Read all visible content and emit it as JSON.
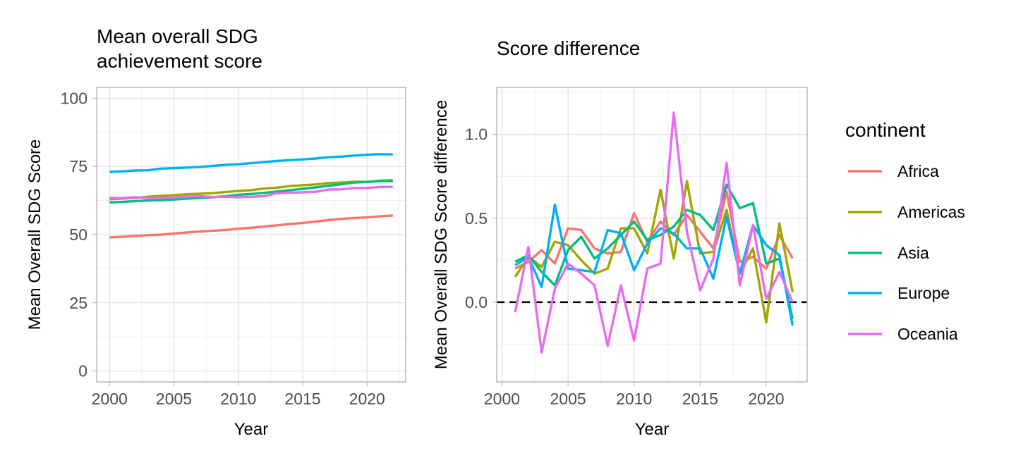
{
  "chart_data": [
    {
      "type": "line",
      "title": "Mean overall SDG achievement score",
      "title_lines": [
        "Mean overall SDG",
        "achievement score"
      ],
      "xlabel": "Year",
      "ylabel": "Mean Overall SDG Score",
      "xlim": [
        1999,
        2023
      ],
      "ylim": [
        -4,
        104
      ],
      "xticks": [
        2000,
        2005,
        2010,
        2015,
        2020
      ],
      "yticks": [
        0,
        25,
        50,
        75,
        100
      ],
      "x": [
        2000,
        2001,
        2002,
        2003,
        2004,
        2005,
        2006,
        2007,
        2008,
        2009,
        2010,
        2011,
        2012,
        2013,
        2014,
        2015,
        2016,
        2017,
        2018,
        2019,
        2020,
        2021,
        2022
      ],
      "grid": true,
      "series": [
        {
          "name": "Africa",
          "color": "#F8766D",
          "values": [
            49.0,
            49.2,
            49.5,
            49.8,
            50.0,
            50.4,
            50.8,
            51.1,
            51.4,
            51.7,
            52.2,
            52.5,
            53.0,
            53.4,
            53.9,
            54.3,
            54.8,
            55.3,
            55.8,
            56.1,
            56.3,
            56.7,
            57.0
          ]
        },
        {
          "name": "Americas",
          "color": "#A3A500",
          "values": [
            63.0,
            63.2,
            63.5,
            63.9,
            64.2,
            64.5,
            64.8,
            65.0,
            65.2,
            65.6,
            66.0,
            66.3,
            66.9,
            67.2,
            67.8,
            68.1,
            68.4,
            68.9,
            69.1,
            69.4,
            69.3,
            69.8,
            69.9
          ]
        },
        {
          "name": "Asia",
          "color": "#00BF7D",
          "values": [
            61.8,
            62.0,
            62.3,
            62.5,
            62.6,
            62.9,
            63.2,
            63.4,
            63.7,
            64.1,
            64.6,
            64.9,
            65.3,
            65.8,
            66.3,
            66.8,
            67.3,
            67.9,
            68.5,
            69.1,
            69.3,
            69.6,
            69.6
          ]
        },
        {
          "name": "Europe",
          "color": "#00B0F6",
          "values": [
            73.0,
            73.2,
            73.5,
            73.6,
            74.2,
            74.4,
            74.6,
            74.8,
            75.2,
            75.6,
            75.8,
            76.2,
            76.6,
            77.0,
            77.3,
            77.6,
            77.9,
            78.4,
            78.6,
            79.0,
            79.3,
            79.5,
            79.4
          ]
        },
        {
          "name": "Oceania",
          "color": "#E76BF3",
          "values": [
            63.5,
            63.4,
            63.7,
            63.4,
            63.5,
            63.7,
            63.9,
            64.1,
            63.8,
            63.9,
            63.7,
            63.9,
            64.1,
            65.2,
            65.4,
            65.5,
            65.7,
            66.5,
            66.6,
            67.1,
            67.1,
            67.5,
            67.5
          ]
        }
      ]
    },
    {
      "type": "line",
      "title": "Score difference",
      "xlabel": "Year",
      "ylabel": "Mean Overall SDG Score difference",
      "xlim": [
        1999.6,
        2023.1
      ],
      "ylim": [
        -0.475,
        1.28
      ],
      "xticks": [
        2000,
        2005,
        2010,
        2015,
        2020
      ],
      "yticks": [
        0.0,
        0.5,
        1.0
      ],
      "ytick_labels": [
        "0.0",
        "0.5",
        "1.0"
      ],
      "x": [
        2001,
        2002,
        2003,
        2004,
        2005,
        2006,
        2007,
        2008,
        2009,
        2010,
        2011,
        2012,
        2013,
        2014,
        2015,
        2016,
        2017,
        2018,
        2019,
        2020,
        2021,
        2022
      ],
      "reference_line": {
        "y": 0,
        "style": "dashed",
        "color": "#000000"
      },
      "grid": true,
      "series": [
        {
          "name": "Africa",
          "color": "#F8766D",
          "values": [
            0.2,
            0.24,
            0.31,
            0.23,
            0.44,
            0.43,
            0.32,
            0.29,
            0.3,
            0.53,
            0.36,
            0.48,
            0.4,
            0.52,
            0.42,
            0.32,
            0.66,
            0.24,
            0.27,
            0.2,
            0.4,
            0.26
          ]
        },
        {
          "name": "Americas",
          "color": "#A3A500",
          "values": [
            0.15,
            0.27,
            0.21,
            0.36,
            0.34,
            0.25,
            0.17,
            0.2,
            0.44,
            0.44,
            0.29,
            0.67,
            0.26,
            0.72,
            0.29,
            0.3,
            0.55,
            0.17,
            0.32,
            -0.12,
            0.47,
            0.06
          ]
        },
        {
          "name": "Asia",
          "color": "#00BF7D",
          "values": [
            0.24,
            0.28,
            0.18,
            0.1,
            0.31,
            0.39,
            0.26,
            0.32,
            0.4,
            0.48,
            0.37,
            0.4,
            0.45,
            0.55,
            0.52,
            0.43,
            0.7,
            0.56,
            0.59,
            0.23,
            0.26,
            -0.1
          ]
        },
        {
          "name": "Europe",
          "color": "#00B0F6",
          "values": [
            0.22,
            0.27,
            0.09,
            0.58,
            0.2,
            0.19,
            0.18,
            0.43,
            0.41,
            0.19,
            0.35,
            0.44,
            0.41,
            0.32,
            0.32,
            0.14,
            0.51,
            0.17,
            0.46,
            0.34,
            0.28,
            -0.14
          ]
        },
        {
          "name": "Oceania",
          "color": "#E76BF3",
          "values": [
            -0.06,
            0.33,
            -0.3,
            0.08,
            0.23,
            0.17,
            0.1,
            -0.26,
            0.1,
            -0.23,
            0.2,
            0.23,
            1.13,
            0.42,
            0.07,
            0.26,
            0.83,
            0.1,
            0.46,
            0.02,
            0.18,
            0.0
          ]
        }
      ]
    }
  ],
  "legend": {
    "title": "continent",
    "placement": "right",
    "items": [
      {
        "label": "Africa",
        "color": "#F8766D"
      },
      {
        "label": "Americas",
        "color": "#A3A500"
      },
      {
        "label": "Asia",
        "color": "#00BF7D"
      },
      {
        "label": "Europe",
        "color": "#00B0F6"
      },
      {
        "label": "Oceania",
        "color": "#E76BF3"
      }
    ]
  }
}
